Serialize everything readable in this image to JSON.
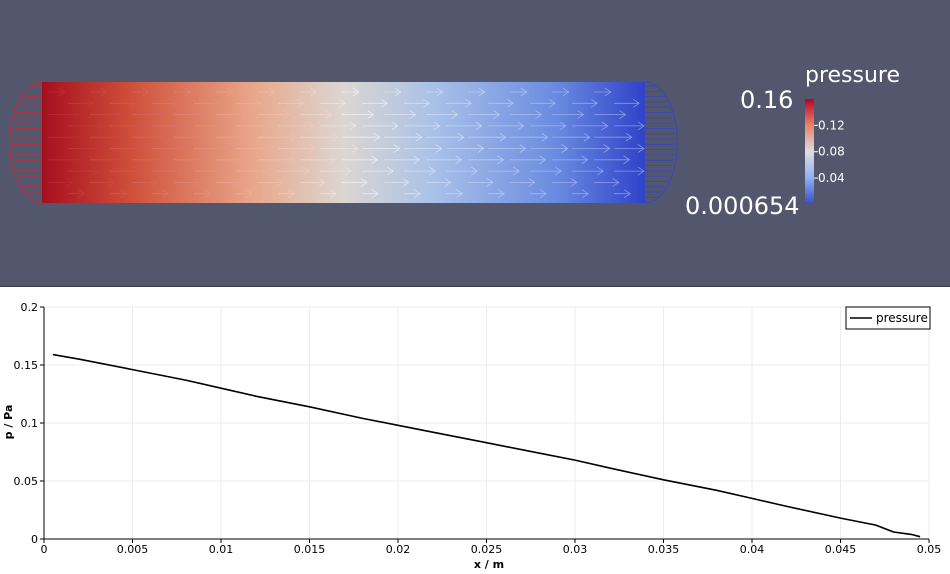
{
  "render_view": {
    "colorbar": {
      "title": "pressure",
      "max_label": "0.16",
      "min_label": "0.000654",
      "ticks": [
        "0.12",
        "0.08",
        "0.04"
      ],
      "tick_values": [
        0.12,
        0.08,
        0.04
      ],
      "range": [
        0.000654,
        0.16
      ]
    },
    "colors": {
      "background": "#52576e",
      "high": "#b40426",
      "mid": "#dddddd",
      "low": "#3b4cc0"
    }
  },
  "chart_data": {
    "type": "line",
    "title": "",
    "xlabel": "x / m",
    "ylabel": "p / Pa",
    "xlim": [
      0,
      0.05
    ],
    "ylim": [
      0,
      0.2
    ],
    "grid": true,
    "legend_position": "top-right",
    "x_ticks": [
      "0",
      "0.005",
      "0.01",
      "0.015",
      "0.02",
      "0.025",
      "0.03",
      "0.035",
      "0.04",
      "0.045",
      "0.05"
    ],
    "y_ticks": [
      "0",
      "0.05",
      "0.1",
      "0.15",
      "0.2"
    ],
    "series": [
      {
        "name": "pressure",
        "color": "#000000",
        "x": [
          0.0005,
          0.002,
          0.005,
          0.008,
          0.01,
          0.012,
          0.015,
          0.018,
          0.02,
          0.022,
          0.025,
          0.028,
          0.03,
          0.032,
          0.035,
          0.038,
          0.04,
          0.042,
          0.045,
          0.047,
          0.048,
          0.049,
          0.0495
        ],
        "y": [
          0.159,
          0.155,
          0.146,
          0.137,
          0.13,
          0.123,
          0.114,
          0.104,
          0.098,
          0.092,
          0.083,
          0.074,
          0.068,
          0.061,
          0.051,
          0.042,
          0.035,
          0.028,
          0.018,
          0.012,
          0.006,
          0.004,
          0.002
        ]
      }
    ]
  }
}
